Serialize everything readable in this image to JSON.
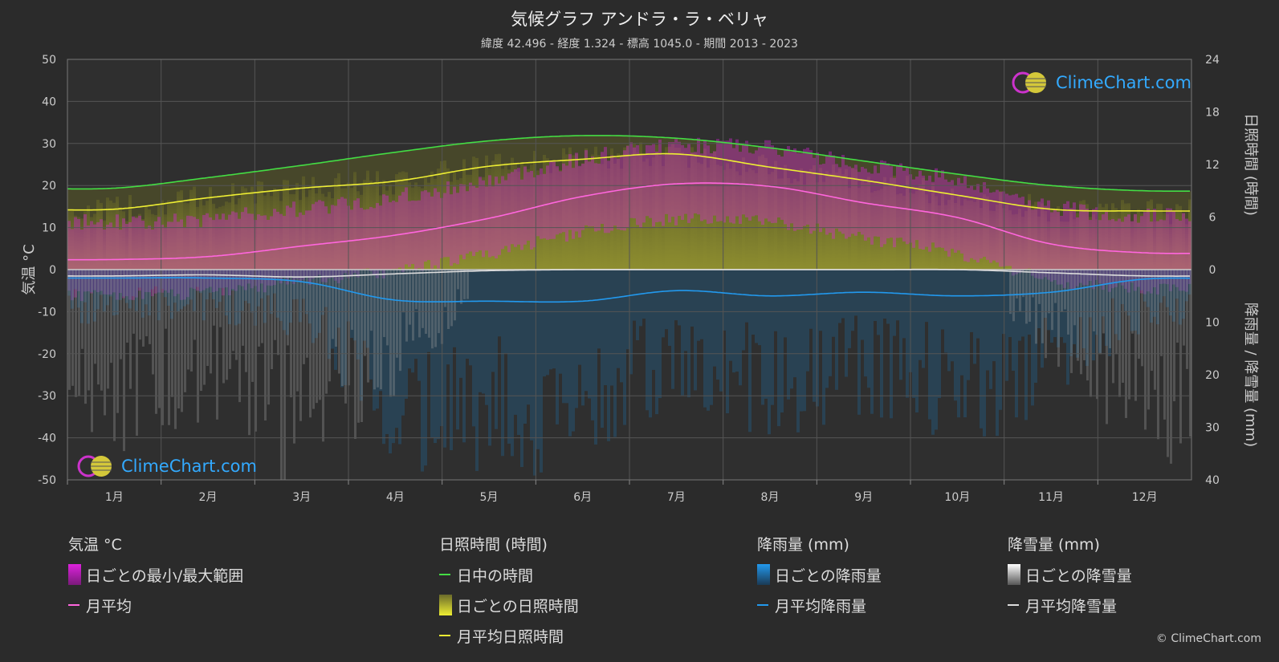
{
  "title": "気候グラフ アンドラ・ラ・ベリャ",
  "subtitle": "緯度 42.496 - 経度 1.324 - 標高 1045.0 - 期間 2013 - 2023",
  "logo_text": "ClimeChart.com",
  "copyright": "© ClimeChart.com",
  "colors": {
    "background": "#2b2b2b",
    "daylight": "#44dd44",
    "sunshine_avg": "#eeee33",
    "temp_avg": "#ff66dd",
    "rain_avg": "#2299ee",
    "snow_avg": "#dddddd",
    "temp_range": "#dd22dd",
    "sunshine_bar": "#888833",
    "rain_bar": "#1e6fa8",
    "snow_bar": "#999999"
  },
  "legend": {
    "temp": {
      "title": "気温 °C",
      "items": [
        "日ごとの最小/最大範囲",
        "月平均"
      ]
    },
    "sun": {
      "title": "日照時間 (時間)",
      "items": [
        "日中の時間",
        "日ごとの日照時間",
        "月平均日照時間"
      ]
    },
    "rain": {
      "title": "降雨量 (mm)",
      "items": [
        "日ごとの降雨量",
        "月平均降雨量"
      ]
    },
    "snow": {
      "title": "降雪量 (mm)",
      "items": [
        "日ごとの降雪量",
        "月平均降雪量"
      ]
    }
  },
  "chart_data": {
    "type": "line",
    "months": [
      "1月",
      "2月",
      "3月",
      "4月",
      "5月",
      "6月",
      "7月",
      "8月",
      "9月",
      "10月",
      "11月",
      "12月"
    ],
    "left_axis": {
      "label": "気温 °C",
      "min": -50,
      "max": 50,
      "ticks": [
        50,
        40,
        30,
        20,
        10,
        0,
        -10,
        -20,
        -30,
        -40,
        -50
      ]
    },
    "right_axis_top": {
      "label": "日照時間 (時間)",
      "min": 0,
      "max": 24,
      "ticks": [
        24,
        18,
        12,
        6,
        0
      ]
    },
    "right_axis_bottom": {
      "label": "降雨量 / 降雪量 (mm)",
      "min": 0,
      "max": 40,
      "ticks": [
        0,
        10,
        20,
        30,
        40
      ]
    },
    "grid": true,
    "series": [
      {
        "name": "日中の時間",
        "axis": "sun",
        "values": [
          9.3,
          10.5,
          11.9,
          13.4,
          14.7,
          15.3,
          15.0,
          13.9,
          12.4,
          10.9,
          9.6,
          9.0
        ]
      },
      {
        "name": "月平均日照時間",
        "axis": "sun",
        "values": [
          6.9,
          8.2,
          9.3,
          10.1,
          11.8,
          12.6,
          13.2,
          11.7,
          10.2,
          8.5,
          6.9,
          6.7
        ]
      },
      {
        "name": "月平均",
        "axis": "temp",
        "values": [
          2.4,
          3.1,
          5.6,
          8.2,
          12.2,
          17.4,
          20.4,
          19.8,
          15.9,
          12.4,
          6.1,
          4.0
        ]
      },
      {
        "name": "月平均降雨量",
        "axis": "precip",
        "values": [
          1.6,
          1.6,
          2.3,
          5.8,
          6.0,
          6.0,
          4.0,
          5.0,
          4.3,
          5.0,
          4.3,
          1.8
        ]
      },
      {
        "name": "月平均降雪量",
        "axis": "precip",
        "values": [
          1.2,
          1.0,
          1.4,
          0.8,
          0.2,
          0.0,
          0.0,
          0.0,
          0.0,
          0.0,
          0.6,
          1.2
        ]
      }
    ]
  }
}
